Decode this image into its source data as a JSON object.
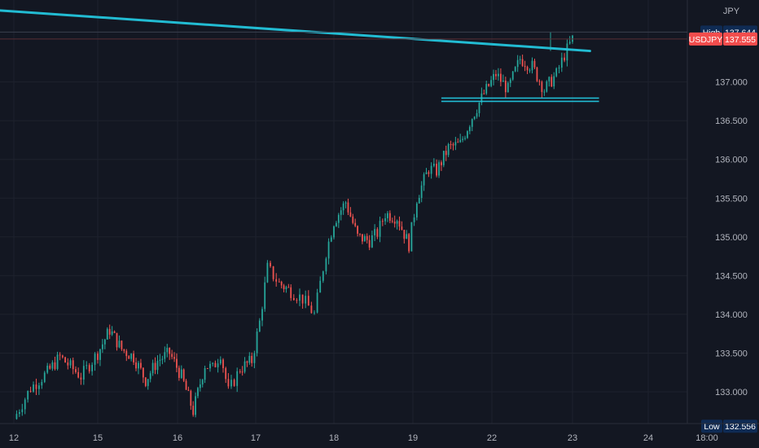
{
  "chart_data": {
    "type": "candlestick",
    "symbol": "USDJPY",
    "currency": "JPY",
    "x_tick_labels": [
      "12",
      "15",
      "16",
      "17",
      "18",
      "19",
      "22",
      "23",
      "24",
      "18:00"
    ],
    "y_tick_labels": [
      "137.000",
      "136.500",
      "136.000",
      "135.500",
      "135.000",
      "134.500",
      "134.000",
      "133.500",
      "133.000"
    ],
    "ylim": [
      132.3,
      137.9
    ],
    "price_labels": {
      "high_label": "High",
      "high_value": "137.644",
      "symbol_label": "USDJPY",
      "last_value": "137.555",
      "low_label": "Low",
      "low_value": "132.556"
    },
    "series": [
      {
        "name": "USDJPY",
        "x": [
          0,
          0.2,
          0.4,
          0.55,
          0.8,
          1.0,
          1.15,
          1.3,
          1.45,
          1.6,
          1.75,
          1.9,
          2.05,
          2.2,
          2.35,
          2.45,
          2.55,
          2.65,
          2.8,
          2.95,
          3.05,
          3.15,
          3.3,
          3.45,
          3.6,
          3.75,
          3.9,
          4.0,
          4.15,
          4.3,
          4.45,
          4.55,
          4.65,
          4.8,
          4.95,
          5.05,
          5.2,
          5.3,
          5.45,
          5.6,
          5.75,
          5.9,
          6.05,
          6.2,
          6.35,
          6.5,
          6.65,
          6.8,
          6.9,
          7.0
        ],
        "close": [
          132.65,
          133.05,
          133.25,
          133.45,
          133.2,
          133.5,
          133.8,
          133.55,
          133.45,
          133.15,
          133.4,
          133.5,
          133.2,
          132.75,
          133.35,
          133.3,
          133.5,
          133.0,
          133.3,
          133.4,
          133.9,
          134.6,
          134.4,
          134.3,
          134.2,
          134.0,
          134.8,
          135.2,
          135.45,
          135.0,
          134.95,
          135.05,
          135.3,
          135.25,
          134.9,
          135.5,
          135.88,
          135.85,
          136.15,
          136.2,
          136.55,
          136.85,
          137.1,
          136.9,
          137.3,
          137.2,
          136.9,
          137.1,
          137.35,
          137.555
        ]
      }
    ],
    "annotations": [
      {
        "type": "trendline",
        "from": [
          -0.8,
          137.97
        ],
        "to": [
          7.23,
          137.4
        ]
      },
      {
        "type": "horizontal_line",
        "from": [
          5.36,
          136.77
        ],
        "to": [
          7.35,
          136.77
        ]
      }
    ],
    "colors": {
      "background": "#131722",
      "grid": "#1e222d",
      "text": "#b2b5be",
      "up": "#26a69a",
      "down": "#ef5350",
      "trendline": "#22bcd3",
      "label_dark": "#0f2b54",
      "label_red": "#f24d4d"
    },
    "grid": true
  }
}
